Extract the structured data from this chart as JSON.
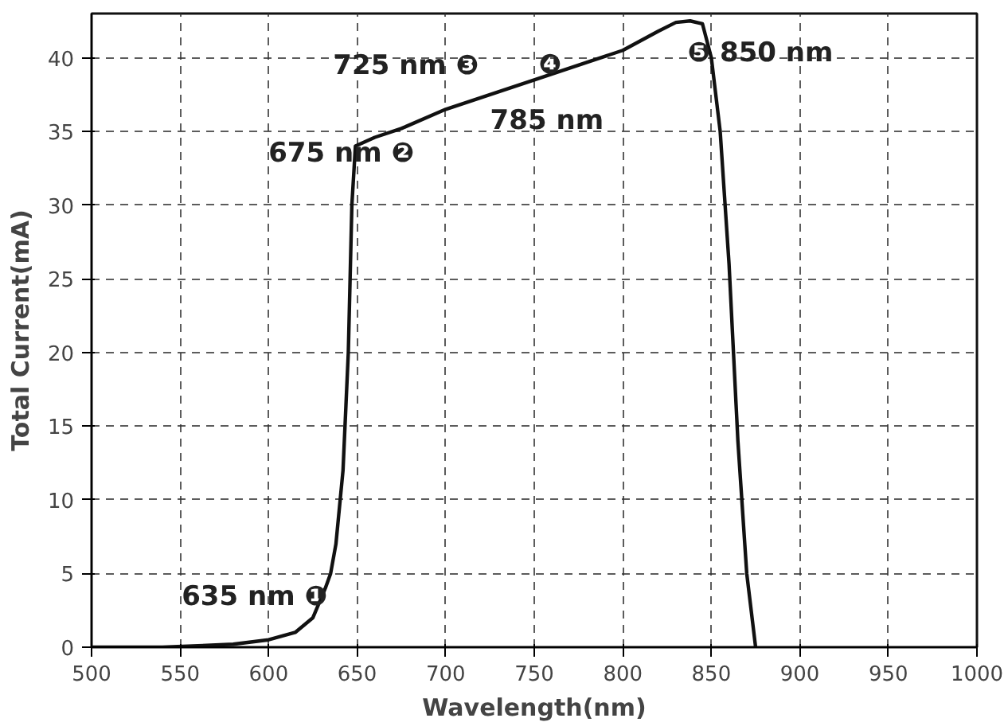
{
  "chart_data": {
    "type": "line",
    "xlabel": "Wavelength(nm)",
    "ylabel": "Total Current(mA)",
    "x": [
      500,
      540,
      560,
      580,
      600,
      615,
      625,
      632,
      635,
      638,
      642,
      645,
      647,
      649,
      660,
      675,
      700,
      725,
      750,
      785,
      800,
      820,
      830,
      838,
      845,
      850,
      855,
      860,
      865,
      870,
      875
    ],
    "series": [
      {
        "color": "#111111",
        "values": [
          0,
          0,
          0.1,
          0.2,
          0.5,
          1,
          2,
          4,
          5,
          7,
          12,
          20,
          30,
          34,
          34.6,
          35.2,
          36.5,
          37.5,
          38.5,
          39.9,
          40.5,
          41.8,
          42.4,
          42.5,
          42.3,
          40,
          35,
          26,
          14,
          5,
          0
        ]
      }
    ],
    "xlim": [
      500,
      1000
    ],
    "ylim": [
      0,
      43
    ],
    "xticks": [
      500,
      550,
      600,
      650,
      700,
      750,
      800,
      850,
      900,
      950,
      1000
    ],
    "yticks": [
      0,
      5,
      10,
      15,
      20,
      25,
      30,
      35,
      40
    ],
    "grid": true,
    "line_style": "solid",
    "marker": "none",
    "annotations": [
      {
        "text": "635 nm ❶",
        "x": 635,
        "y": 5
      },
      {
        "text": "675 nm ❷",
        "x": 675,
        "y": 35.2
      },
      {
        "text": "725 nm ❸",
        "x": 725,
        "y": 37.5
      },
      {
        "text": "❹",
        "x": 785,
        "y": 39.9
      },
      {
        "text": "785 nm",
        "x": 785,
        "y": 39.9
      },
      {
        "text": "❺ 850 nm",
        "x": 850,
        "y": 40
      }
    ]
  }
}
